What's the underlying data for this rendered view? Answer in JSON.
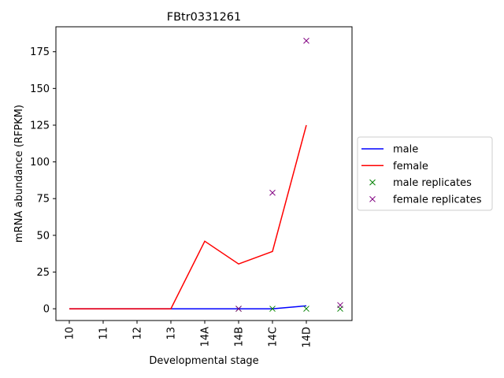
{
  "chart_data": {
    "type": "line",
    "title": "FBtr0331261",
    "xlabel": "Developmental stage",
    "ylabel": "mRNA abundance (RFPKM)",
    "categories": [
      "10",
      "11",
      "12",
      "13",
      "14A",
      "14B",
      "14C",
      "14D"
    ],
    "ylim": [
      -8,
      192
    ],
    "yticks": [
      0,
      25,
      50,
      75,
      100,
      125,
      150,
      175
    ],
    "series": [
      {
        "name": "male",
        "type": "line",
        "color": "#0000ff",
        "values": [
          0,
          0,
          0,
          0,
          0,
          0,
          0,
          2
        ]
      },
      {
        "name": "female",
        "type": "line",
        "color": "#ff0000",
        "values": [
          0,
          0,
          0,
          0,
          46,
          30.5,
          39,
          125
        ]
      }
    ],
    "replicates": [
      {
        "name": "male replicates",
        "marker": "x",
        "color": "#008000",
        "points": [
          {
            "x": "14B",
            "y": 0
          },
          {
            "x": "14C",
            "y": 0
          },
          {
            "x": "14D",
            "y": 0
          },
          {
            "x": 8,
            "y": 0
          }
        ]
      },
      {
        "name": "female replicates",
        "marker": "x",
        "color": "#800080",
        "points": [
          {
            "x": "14B",
            "y": 0
          },
          {
            "x": "14C",
            "y": 79
          },
          {
            "x": "14D",
            "y": 182.5
          },
          {
            "x": 8,
            "y": 2.5
          }
        ]
      }
    ],
    "legend": {
      "placement": "center-right-outside",
      "entries": [
        "male",
        "female",
        "male replicates",
        "female replicates"
      ]
    },
    "grid": false
  }
}
